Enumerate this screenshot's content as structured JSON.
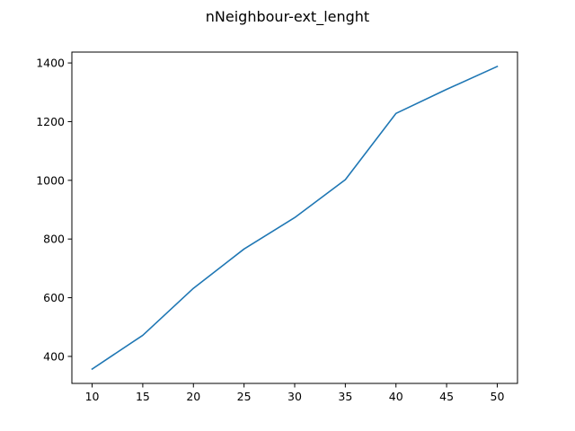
{
  "chart_data": {
    "type": "line",
    "title": "nNeighbour-ext_lenght",
    "xlabel": "",
    "ylabel": "",
    "x": [
      10,
      15,
      20,
      25,
      30,
      35,
      40,
      45,
      50
    ],
    "series": [
      {
        "values": [
          357,
          472,
          632,
          766,
          873,
          1002,
          1228,
          1310,
          1388
        ],
        "color": "#1f77b4"
      }
    ],
    "xlim": [
      8,
      52
    ],
    "ylim": [
      308,
      1437
    ],
    "xticks": [
      10,
      15,
      20,
      25,
      30,
      35,
      40,
      45,
      50
    ],
    "yticks": [
      400,
      600,
      800,
      1000,
      1200,
      1400
    ],
    "grid": false,
    "legend": "none"
  }
}
